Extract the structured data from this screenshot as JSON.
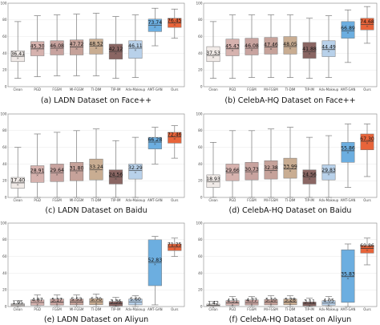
{
  "categories": [
    "Clean",
    "PGD",
    "FGSM",
    "MI-FGSM",
    "TI-DIM",
    "TIP-IM",
    "Adv-Makeup",
    "AMT-GAN",
    "Ours"
  ],
  "colors": [
    "#f1ebe8",
    "#d6b2ae",
    "#c8a39f",
    "#c6a29a",
    "#c9ad92",
    "#8a6663",
    "#b8d1ea",
    "#6caee0",
    "#e8643a"
  ],
  "chart_data": [
    {
      "type": "box",
      "caption": "(a) LADN Dataset on Face++",
      "ylim": [
        0,
        100
      ],
      "yticks": [
        0,
        20,
        40,
        60,
        80,
        100
      ],
      "medians": [
        36.41,
        45.3,
        46.08,
        47.72,
        48.52,
        42.12,
        46.11,
        73.74,
        76.45
      ],
      "q1": [
        30,
        37,
        38,
        38,
        39,
        33,
        34,
        66,
        71
      ],
      "q3": [
        43,
        54,
        55,
        56,
        57,
        51,
        55,
        81,
        82
      ],
      "whisker_low": [
        10,
        12,
        13,
        13,
        13,
        10,
        11,
        49,
        58
      ],
      "whisker_high": [
        78,
        85,
        86,
        87,
        88,
        84,
        86,
        94,
        93
      ]
    },
    {
      "type": "box",
      "caption": "(b) CelebA-HQ Dataset on Face++",
      "ylim": [
        0,
        100
      ],
      "yticks": [
        0,
        20,
        40,
        60,
        80,
        100
      ],
      "medians": [
        37.53,
        45.43,
        46.08,
        47.46,
        48.05,
        41.88,
        44.49,
        66.89,
        74.68
      ],
      "q1": [
        30,
        37,
        38,
        39,
        39,
        34,
        36,
        58,
        68
      ],
      "q3": [
        48,
        57,
        58,
        59,
        60,
        53,
        55,
        78,
        82
      ],
      "whisker_low": [
        10,
        10,
        11,
        11,
        11,
        10,
        11,
        29,
        52
      ],
      "whisker_high": [
        78,
        86,
        86,
        86,
        86,
        82,
        85,
        92,
        96
      ]
    },
    {
      "type": "box",
      "caption": "(c) LADN Dataset on Baidu",
      "ylim": [
        0,
        100
      ],
      "yticks": [
        0,
        20,
        40,
        60,
        80,
        100
      ],
      "medians": [
        17.4,
        28.91,
        29.64,
        31.8,
        33.24,
        24.56,
        32.29,
        66.28,
        72.46
      ],
      "q1": [
        11,
        18,
        19,
        20,
        21,
        16,
        22,
        58,
        65
      ],
      "q3": [
        24,
        38,
        40,
        42,
        46,
        33,
        40,
        72,
        78
      ],
      "whisker_low": [
        0,
        0,
        0,
        0,
        0,
        0,
        0,
        40,
        47
      ],
      "whisker_high": [
        60,
        76,
        78,
        80,
        82,
        68,
        72,
        84,
        86
      ]
    },
    {
      "type": "box",
      "caption": "(d) CelebA-HQ Dataset on Baidu",
      "ylim": [
        0,
        100
      ],
      "yticks": [
        0,
        20,
        40,
        60,
        80,
        100
      ],
      "medians": [
        18.93,
        29.66,
        30.73,
        32.38,
        33.99,
        24.56,
        29.83,
        55.86,
        67.3
      ],
      "q1": [
        12,
        20,
        21,
        22,
        23,
        16,
        21,
        42,
        57
      ],
      "q3": [
        27,
        40,
        42,
        44,
        47,
        33,
        39,
        66,
        76
      ],
      "whisker_low": [
        0,
        0,
        0,
        0,
        0,
        0,
        0,
        12,
        25
      ],
      "whisker_high": [
        66,
        80,
        80,
        82,
        84,
        72,
        74,
        88,
        88
      ]
    },
    {
      "type": "box",
      "caption": "(e) LADN Dataset on Aliyun",
      "ylim": [
        0,
        100
      ],
      "yticks": [
        0,
        20,
        40,
        60,
        80,
        100
      ],
      "medians": [
        1.95,
        4.87,
        5.17,
        5.53,
        5.7,
        3.36,
        5.6,
        52.83,
        71.25
      ],
      "q1": [
        0.3,
        1.5,
        1.8,
        2.0,
        2.2,
        0.8,
        2.0,
        25,
        67
      ],
      "q3": [
        3.5,
        8,
        9,
        9,
        9.5,
        6,
        9,
        80,
        75
      ],
      "whisker_low": [
        0,
        0,
        0,
        0,
        0,
        0,
        0,
        2,
        60
      ],
      "whisker_high": [
        7,
        14,
        14,
        14,
        15,
        11,
        13,
        84,
        82
      ]
    },
    {
      "type": "box",
      "caption": "(f) CelebA-HQ Dataset on Aliyun",
      "ylim": [
        0,
        100
      ],
      "yticks": [
        0,
        20,
        40,
        60,
        80,
        100
      ],
      "medians": [
        1.42,
        4.31,
        4.77,
        5.1,
        5.28,
        3.11,
        4.05,
        35.83,
        69.86
      ],
      "q1": [
        0.3,
        1.5,
        1.8,
        2.0,
        2.1,
        0.8,
        1.5,
        5,
        64
      ],
      "q3": [
        3,
        7,
        8,
        8.5,
        9,
        5.5,
        7,
        68,
        73
      ],
      "whisker_low": [
        0,
        0,
        0,
        0,
        0,
        0,
        0,
        0,
        50
      ],
      "whisker_high": [
        6,
        12,
        12,
        13,
        13,
        10,
        12,
        75,
        82
      ]
    }
  ]
}
